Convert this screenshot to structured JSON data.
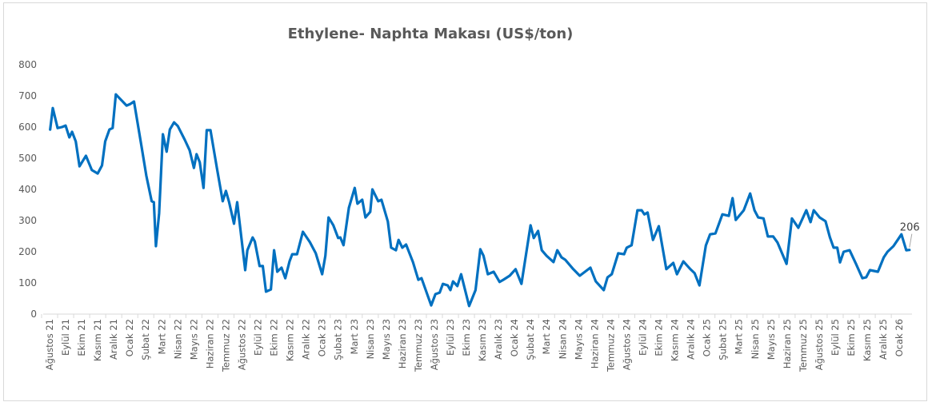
{
  "chart_data": {
    "type": "line",
    "title": "Ethylene- Naphta Makası (US$/ton)",
    "xlabel": "",
    "ylabel": "",
    "ylim": [
      0,
      800
    ],
    "yticks": [
      0,
      100,
      200,
      300,
      400,
      500,
      600,
      700,
      800
    ],
    "grid": false,
    "legend": "none",
    "line_color": "#0070C0",
    "xtick_labels": [
      "Ağustos 21",
      "Eylül 21",
      "Ekim 21",
      "Kasım 21",
      "Aralık 21",
      "Ocak 22",
      "Şubat 22",
      "Mart 22",
      "Nisan 22",
      "Mayıs 22",
      "Haziran 22",
      "Temmuz 22",
      "Ağustos 22",
      "Eylül 22",
      "Ekim 22",
      "Kasım 22",
      "Aralık 22",
      "Ocak 23",
      "Şubat 23",
      "Mart 23",
      "Nisan 23",
      "Mayıs 23",
      "Haziran 23",
      "Temmuz 23",
      "Ağustos 23",
      "Eylül 23",
      "Ekim 23",
      "Kasım 23",
      "Aralık 23",
      "Ocak 24",
      "Şubat 24",
      "Mart 24",
      "Nisan 24",
      "Mayıs 24",
      "Haziran 24",
      "Temmuz 24",
      "Ağustos 24",
      "Eylül 24",
      "Ekim 24",
      "Kasım 24",
      "Aralık 24",
      "Ocak 25",
      "Şubat 25",
      "Mart 25",
      "Nisan 25",
      "Mayıs 25",
      "Haziran 25",
      "Temmuz 25",
      "Ağustos 25",
      "Eylül 25",
      "Ekim 25",
      "Kasım 25",
      "Aralık 25",
      "Ocak 26"
    ],
    "series": [
      {
        "x": [
          "2021-08-02",
          "2021-08-07",
          "2021-08-16",
          "2021-08-24",
          "2021-09-01",
          "2021-09-08",
          "2021-09-13",
          "2021-09-20",
          "2021-09-27",
          "2021-10-09",
          "2021-10-20",
          "2021-11-01",
          "2021-11-09",
          "2021-11-15",
          "2021-11-23",
          "2021-11-29",
          "2021-12-05",
          "2021-12-25",
          "2022-01-02",
          "2022-01-09",
          "2022-01-23",
          "2022-02-02",
          "2022-02-12",
          "2022-02-16",
          "2022-02-20",
          "2022-02-26",
          "2022-03-03",
          "2022-03-10",
          "2022-03-16",
          "2022-03-24",
          "2022-04-01",
          "2022-04-14",
          "2022-04-23",
          "2022-05-01",
          "2022-05-06",
          "2022-05-12",
          "2022-05-19",
          "2022-05-25",
          "2022-06-02",
          "2022-06-14",
          "2022-06-25",
          "2022-07-01",
          "2022-07-07",
          "2022-07-16",
          "2022-07-22",
          "2022-08-07",
          "2022-08-11",
          "2022-08-21",
          "2022-08-25",
          "2022-09-04",
          "2022-09-10",
          "2022-09-16",
          "2022-09-25",
          "2022-10-01",
          "2022-10-07",
          "2022-10-15",
          "2022-10-22",
          "2022-10-30",
          "2022-11-05",
          "2022-11-14",
          "2022-11-25",
          "2022-12-08",
          "2022-12-19",
          "2023-01-01",
          "2023-01-07",
          "2023-01-13",
          "2023-01-22",
          "2023-02-01",
          "2023-02-05",
          "2023-02-11",
          "2023-02-21",
          "2023-03-02",
          "2023-03-07",
          "2023-03-16",
          "2023-03-22",
          "2023-04-01",
          "2023-04-05",
          "2023-04-16",
          "2023-04-22",
          "2023-05-04",
          "2023-05-10",
          "2023-05-19",
          "2023-05-24",
          "2023-06-01",
          "2023-06-08",
          "2023-06-21",
          "2023-07-01",
          "2023-07-07",
          "2023-07-25",
          "2023-08-03",
          "2023-08-11",
          "2023-08-17",
          "2023-08-26",
          "2023-09-01",
          "2023-09-06",
          "2023-09-14",
          "2023-09-21",
          "2023-10-06",
          "2023-10-18",
          "2023-10-27",
          "2023-11-03",
          "2023-11-11",
          "2023-11-22",
          "2023-12-03",
          "2023-12-10",
          "2023-12-22",
          "2024-01-03",
          "2024-01-14",
          "2024-01-31",
          "2024-02-07",
          "2024-02-15",
          "2024-02-22",
          "2024-03-01",
          "2024-03-14",
          "2024-03-21",
          "2024-03-29",
          "2024-04-06",
          "2024-04-21",
          "2024-05-03",
          "2024-05-23",
          "2024-06-03",
          "2024-06-18",
          "2024-06-25",
          "2024-07-03",
          "2024-07-15",
          "2024-07-26",
          "2024-07-31",
          "2024-08-10",
          "2024-08-21",
          "2024-08-29",
          "2024-09-04",
          "2024-09-10",
          "2024-09-20",
          "2024-10-01",
          "2024-10-15",
          "2024-10-28",
          "2024-11-05",
          "2024-11-17",
          "2024-11-29",
          "2024-12-08",
          "2024-12-17",
          "2024-12-29",
          "2025-01-07",
          "2025-01-17",
          "2025-01-30",
          "2025-02-12",
          "2025-02-19",
          "2025-02-25",
          "2025-03-10",
          "2025-03-22",
          "2025-03-30",
          "2025-04-07",
          "2025-04-17",
          "2025-04-25",
          "2025-05-05",
          "2025-05-13",
          "2025-05-30",
          "2025-06-10",
          "2025-06-22",
          "2025-07-07",
          "2025-07-15",
          "2025-07-21",
          "2025-08-02",
          "2025-08-13",
          "2025-08-21",
          "2025-08-28",
          "2025-09-05",
          "2025-09-10",
          "2025-09-17",
          "2025-09-28",
          "2025-10-10",
          "2025-10-22",
          "2025-10-29",
          "2025-11-06",
          "2025-11-21",
          "2025-12-02",
          "2025-12-09",
          "2025-12-20",
          "2025-12-28",
          "2026-01-05",
          "2026-01-14",
          "2026-01-20"
        ],
        "values": [
          592,
          661,
          597,
          600,
          605,
          567,
          585,
          554,
          474,
          508,
          462,
          451,
          477,
          554,
          592,
          597,
          705,
          669,
          674,
          682,
          538,
          444,
          362,
          359,
          218,
          323,
          577,
          521,
          592,
          615,
          603,
          559,
          526,
          469,
          513,
          487,
          405,
          590,
          590,
          469,
          362,
          395,
          359,
          290,
          359,
          141,
          205,
          246,
          233,
          154,
          154,
          72,
          79,
          205,
          136,
          149,
          115,
          169,
          192,
          192,
          264,
          231,
          195,
          128,
          187,
          310,
          285,
          244,
          246,
          221,
          341,
          405,
          354,
          367,
          310,
          328,
          400,
          362,
          367,
          297,
          213,
          205,
          238,
          213,
          223,
          167,
          110,
          115,
          28,
          64,
          69,
          97,
          92,
          77,
          105,
          90,
          128,
          26,
          77,
          208,
          187,
          128,
          136,
          103,
          110,
          123,
          144,
          97,
          285,
          244,
          267,
          205,
          187,
          167,
          205,
          182,
          174,
          144,
          123,
          149,
          105,
          77,
          118,
          128,
          195,
          192,
          213,
          221,
          333,
          333,
          320,
          326,
          238,
          282,
          144,
          164,
          128,
          169,
          146,
          131,
          92,
          220,
          256,
          259,
          320,
          315,
          372,
          302,
          333,
          387,
          333,
          310,
          307,
          249,
          249,
          230,
          161,
          307,
          277,
          333,
          295,
          333,
          310,
          298,
          247,
          213,
          213,
          166,
          200,
          205,
          161,
          115,
          118,
          141,
          136,
          182,
          200,
          218,
          238,
          256,
          205,
          206
        ]
      }
    ],
    "annotations": [
      {
        "text": "206",
        "target": "last-point"
      }
    ]
  }
}
